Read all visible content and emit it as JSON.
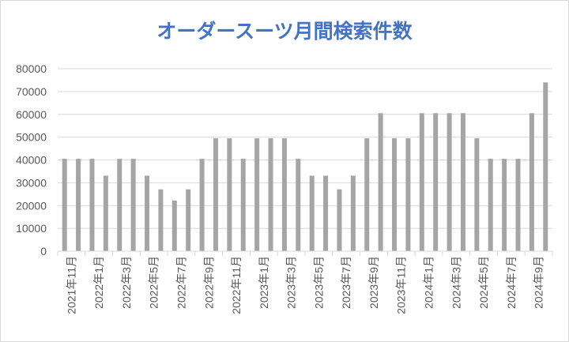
{
  "chart_data": {
    "type": "bar",
    "title": "オーダースーツ月間検索件数",
    "xlabel": "",
    "ylabel": "",
    "ylim": [
      0,
      80000
    ],
    "yticks": [
      0,
      10000,
      20000,
      30000,
      40000,
      50000,
      60000,
      70000,
      80000
    ],
    "grid": true,
    "legend": "none",
    "bar_color": "#a5a5a5",
    "grid_color": "#d9d9d9",
    "categories": [
      "2021年11月",
      "2021年12月",
      "2022年1月",
      "2022年2月",
      "2022年3月",
      "2022年4月",
      "2022年5月",
      "2022年6月",
      "2022年7月",
      "2022年8月",
      "2022年9月",
      "2022年10月",
      "2022年11月",
      "2022年12月",
      "2023年1月",
      "2023年2月",
      "2023年3月",
      "2023年4月",
      "2023年5月",
      "2023年6月",
      "2023年7月",
      "2023年8月",
      "2023年9月",
      "2023年10月",
      "2023年11月",
      "2023年12月",
      "2024年1月",
      "2024年2月",
      "2024年3月",
      "2024年4月",
      "2024年5月",
      "2024年6月",
      "2024年7月",
      "2024年8月",
      "2024年9月",
      "2024年10月"
    ],
    "tick_labels": [
      "2021年11月",
      "2022年1月",
      "2022年3月",
      "2022年5月",
      "2022年7月",
      "2022年9月",
      "2022年11月",
      "2023年1月",
      "2023年3月",
      "2023年5月",
      "2023年7月",
      "2023年9月",
      "2023年11月",
      "2024年1月",
      "2024年3月",
      "2024年5月",
      "2024年7月",
      "2024年9月"
    ],
    "values": [
      40500,
      40500,
      40500,
      33100,
      40500,
      40500,
      33100,
      27100,
      22200,
      27100,
      40500,
      49500,
      49500,
      40500,
      49500,
      49500,
      49500,
      40500,
      33100,
      33100,
      27100,
      33100,
      49500,
      60500,
      49500,
      49500,
      60500,
      60500,
      60500,
      60500,
      49500,
      40500,
      40500,
      40500,
      60500,
      74000
    ]
  }
}
